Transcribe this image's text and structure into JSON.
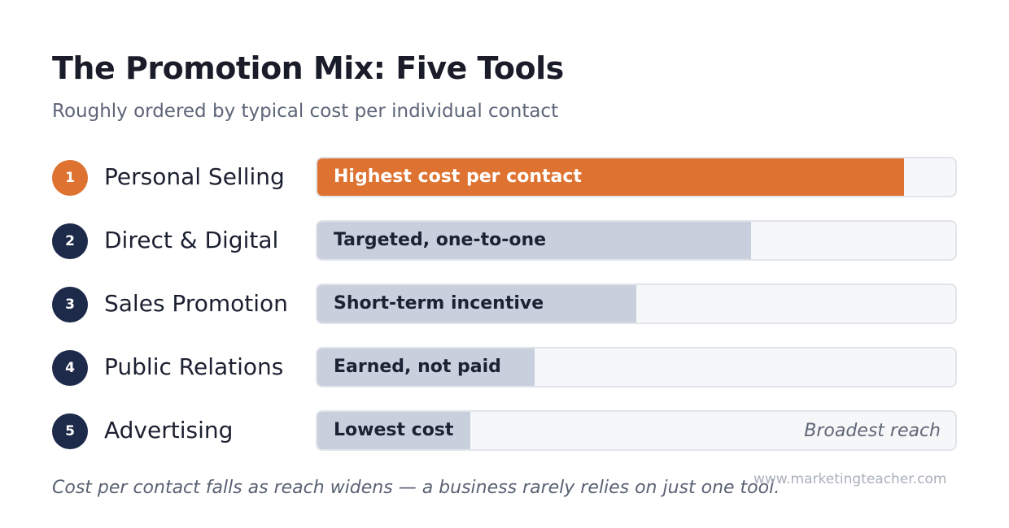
{
  "header": {
    "title": "The Promotion Mix: Five Tools",
    "subtitle": "Roughly ordered by typical cost per individual contact"
  },
  "chart_data": {
    "type": "bar",
    "orientation": "horizontal",
    "categories": [
      "Personal Selling",
      "Direct & Digital",
      "Sales Promotion",
      "Public Relations",
      "Advertising"
    ],
    "ranks": [
      "1",
      "2",
      "3",
      "4",
      "5"
    ],
    "values": [
      0.92,
      0.68,
      0.5,
      0.34,
      0.24
    ],
    "bar_labels": [
      "Highest cost per contact",
      "Targeted, one-to-one",
      "Short-term incentive",
      "Earned, not paid",
      "Lowest cost"
    ],
    "annotations": [
      {
        "category": "Advertising",
        "text": "Broadest reach",
        "placement": "right-end"
      }
    ],
    "title": "The Promotion Mix: Five Tools",
    "subtitle": "Roughly ordered by typical cost per individual contact",
    "xlim": [
      0,
      1
    ],
    "grid": false,
    "highlight_index": 0,
    "colors": {
      "highlight": "#de7230",
      "bar": "#c9d0dd",
      "track": "#f6f7f9",
      "badge": "#1e2a4a",
      "badge_highlight": "#de7230"
    }
  },
  "footer": {
    "note": "Cost per contact falls as reach widens — a business rarely relies on just one tool.",
    "watermark": "www.marketingteacher.com"
  }
}
